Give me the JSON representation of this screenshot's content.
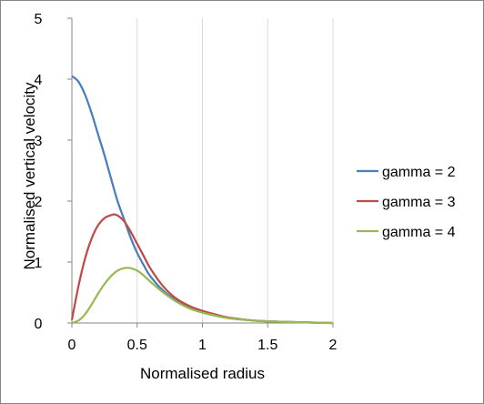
{
  "chart_data": {
    "type": "line",
    "xlabel": "Normalised radius",
    "ylabel": "Normalised vertical velocity",
    "xlim": [
      0,
      2
    ],
    "ylim": [
      0,
      5
    ],
    "x_ticks": [
      "0",
      "0.5",
      "1",
      "1.5",
      "2"
    ],
    "y_ticks": [
      "0",
      "1",
      "2",
      "3",
      "4",
      "5"
    ],
    "grid": "vertical",
    "legend_position": "right",
    "series": [
      {
        "name": "gamma = 2",
        "color": "#4a7ebb",
        "x": [
          0,
          0.05,
          0.1,
          0.15,
          0.2,
          0.25,
          0.3,
          0.35,
          0.4,
          0.45,
          0.5,
          0.55,
          0.6,
          0.7,
          0.8,
          0.9,
          1.0,
          1.1,
          1.2,
          1.4,
          1.6,
          1.8,
          2.0
        ],
        "y": [
          4.05,
          3.96,
          3.75,
          3.45,
          3.1,
          2.75,
          2.37,
          2.0,
          1.7,
          1.4,
          1.15,
          0.95,
          0.77,
          0.53,
          0.37,
          0.26,
          0.18,
          0.12,
          0.08,
          0.04,
          0.02,
          0.01,
          0.0
        ]
      },
      {
        "name": "gamma = 3",
        "color": "#be4b48",
        "x": [
          0,
          0.05,
          0.1,
          0.15,
          0.2,
          0.25,
          0.3,
          0.33,
          0.36,
          0.4,
          0.45,
          0.5,
          0.55,
          0.6,
          0.7,
          0.8,
          0.9,
          1.0,
          1.1,
          1.2,
          1.4,
          1.6,
          1.8,
          2.0
        ],
        "y": [
          0.05,
          0.6,
          1.05,
          1.38,
          1.6,
          1.72,
          1.77,
          1.78,
          1.75,
          1.67,
          1.5,
          1.3,
          1.1,
          0.9,
          0.6,
          0.4,
          0.28,
          0.2,
          0.14,
          0.09,
          0.04,
          0.02,
          0.01,
          0.0
        ]
      },
      {
        "name": "gamma = 4",
        "color": "#98b954",
        "x": [
          0,
          0.05,
          0.1,
          0.15,
          0.2,
          0.25,
          0.3,
          0.35,
          0.4,
          0.45,
          0.5,
          0.55,
          0.6,
          0.7,
          0.8,
          0.9,
          1.0,
          1.1,
          1.2,
          1.4,
          1.6,
          1.8,
          2.0
        ],
        "y": [
          0.0,
          0.04,
          0.14,
          0.3,
          0.48,
          0.64,
          0.77,
          0.86,
          0.9,
          0.9,
          0.86,
          0.78,
          0.68,
          0.5,
          0.35,
          0.24,
          0.17,
          0.12,
          0.08,
          0.04,
          0.02,
          0.01,
          0.0
        ]
      }
    ]
  }
}
